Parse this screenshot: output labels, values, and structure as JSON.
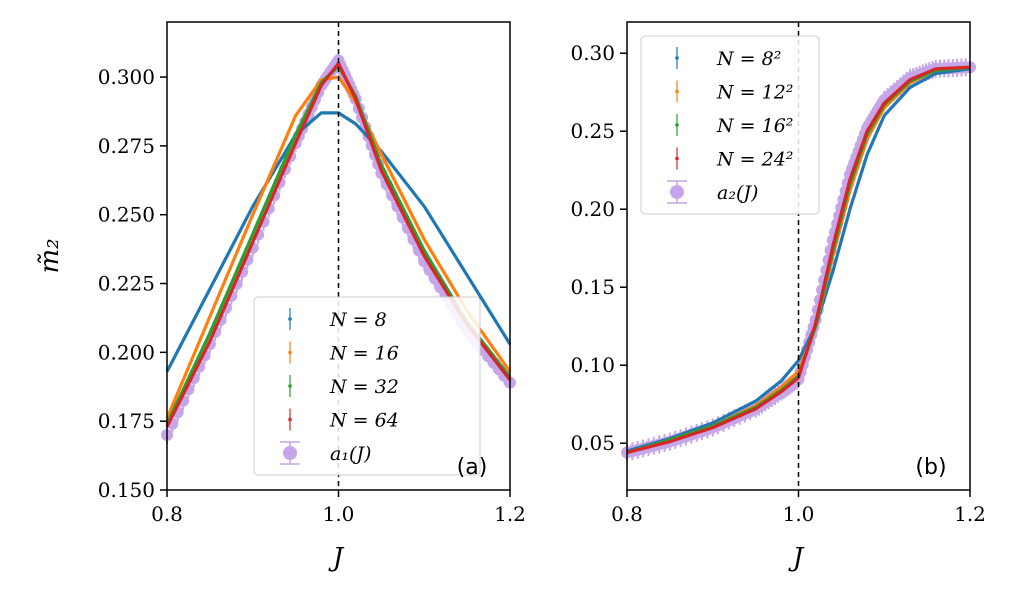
{
  "chart_data": [
    {
      "type": "line",
      "panel_label": "(a)",
      "xlabel": "J",
      "ylabel": "m̃₂",
      "xlim": [
        0.8,
        1.2
      ],
      "ylim": [
        0.15,
        0.32
      ],
      "xticks": [
        0.8,
        1.0,
        1.2
      ],
      "xtick_labels": [
        "0.8",
        "1.0",
        "1.2"
      ],
      "yticks": [
        0.15,
        0.175,
        0.2,
        0.225,
        0.25,
        0.275,
        0.3
      ],
      "ytick_labels": [
        "0.150",
        "0.175",
        "0.200",
        "0.225",
        "0.250",
        "0.275",
        "0.300"
      ],
      "vline_x": 1.0,
      "legend_position": "lower-right",
      "x": [
        0.8,
        0.85,
        0.9,
        0.95,
        0.98,
        1.0,
        1.02,
        1.05,
        1.1,
        1.15,
        1.2
      ],
      "series": [
        {
          "name": "N = 8",
          "color": "#1f77b4",
          "values": [
            0.193,
            0.223,
            0.253,
            0.279,
            0.287,
            0.287,
            0.283,
            0.273,
            0.253,
            0.228,
            0.203
          ]
        },
        {
          "name": "N = 16",
          "color": "#ff7f0e",
          "values": [
            0.176,
            0.213,
            0.25,
            0.286,
            0.299,
            0.3,
            0.291,
            0.272,
            0.241,
            0.215,
            0.193
          ]
        },
        {
          "name": "N = 32",
          "color": "#2ca02c",
          "values": [
            0.174,
            0.207,
            0.243,
            0.279,
            0.298,
            0.304,
            0.293,
            0.268,
            0.237,
            0.211,
            0.191
          ]
        },
        {
          "name": "N = 64",
          "color": "#d62728",
          "values": [
            0.173,
            0.204,
            0.24,
            0.276,
            0.297,
            0.305,
            0.292,
            0.266,
            0.235,
            0.21,
            0.19
          ]
        },
        {
          "name": "a₁(J)",
          "color": "#c6a6e8",
          "marker": "circle",
          "values": [
            0.17,
            0.203,
            0.238,
            0.276,
            0.297,
            0.306,
            0.292,
            0.265,
            0.233,
            0.208,
            0.189
          ]
        }
      ]
    },
    {
      "type": "line",
      "panel_label": "(b)",
      "xlabel": "J",
      "ylabel": "",
      "xlim": [
        0.8,
        1.2
      ],
      "ylim": [
        0.02,
        0.32
      ],
      "xticks": [
        0.8,
        1.0,
        1.2
      ],
      "xtick_labels": [
        "0.8",
        "1.0",
        "1.2"
      ],
      "yticks": [
        0.05,
        0.1,
        0.15,
        0.2,
        0.25,
        0.3
      ],
      "ytick_labels": [
        "0.05",
        "0.10",
        "0.15",
        "0.20",
        "0.25",
        "0.30"
      ],
      "vline_x": 1.0,
      "legend_position": "upper-left",
      "x": [
        0.8,
        0.85,
        0.9,
        0.95,
        0.98,
        1.0,
        1.02,
        1.04,
        1.06,
        1.08,
        1.1,
        1.13,
        1.16,
        1.2
      ],
      "series": [
        {
          "name": "N = 8²",
          "color": "#1f77b4",
          "values": [
            0.045,
            0.053,
            0.063,
            0.077,
            0.09,
            0.103,
            0.125,
            0.16,
            0.2,
            0.235,
            0.26,
            0.278,
            0.287,
            0.29
          ]
        },
        {
          "name": "N = 12²",
          "color": "#ff7f0e",
          "values": [
            0.044,
            0.052,
            0.061,
            0.074,
            0.086,
            0.096,
            0.125,
            0.17,
            0.212,
            0.245,
            0.265,
            0.281,
            0.289,
            0.291
          ]
        },
        {
          "name": "N = 16²",
          "color": "#2ca02c",
          "values": [
            0.044,
            0.052,
            0.061,
            0.073,
            0.084,
            0.093,
            0.125,
            0.173,
            0.216,
            0.248,
            0.267,
            0.282,
            0.289,
            0.291
          ]
        },
        {
          "name": "N = 24²",
          "color": "#d62728",
          "values": [
            0.044,
            0.051,
            0.06,
            0.072,
            0.083,
            0.092,
            0.127,
            0.176,
            0.219,
            0.25,
            0.268,
            0.283,
            0.29,
            0.291
          ]
        },
        {
          "name": "a₂(J)",
          "color": "#c6a6e8",
          "marker": "circle",
          "values": [
            0.044,
            0.051,
            0.06,
            0.072,
            0.083,
            0.091,
            0.129,
            0.18,
            0.222,
            0.252,
            0.27,
            0.284,
            0.29,
            0.291
          ]
        }
      ]
    }
  ]
}
